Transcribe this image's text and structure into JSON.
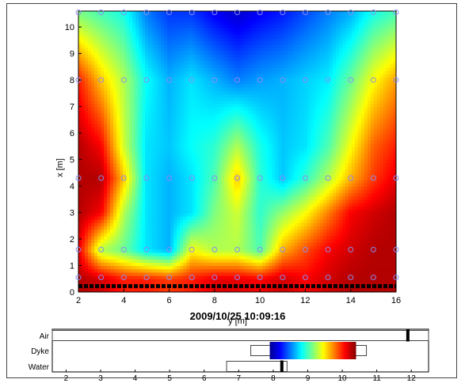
{
  "chart_data": [
    {
      "type": "heatmap",
      "title": "",
      "xlabel": "y [m]",
      "ylabel": "x [m]",
      "xlim": [
        2,
        16
      ],
      "ylim": [
        0,
        10.6
      ],
      "x_ticks": [
        "2",
        "4",
        "6",
        "8",
        "10",
        "12",
        "14",
        "16"
      ],
      "y_ticks": [
        "0",
        "1",
        "2",
        "3",
        "4",
        "5",
        "6",
        "7",
        "8",
        "9",
        "10"
      ],
      "colormap": "jet",
      "sensor_rows_x": [
        0.55,
        1.6,
        4.3,
        8.0,
        10.55
      ],
      "sensor_cols_y": [
        2,
        3,
        4,
        5,
        6,
        7,
        8,
        9,
        10,
        11,
        12,
        13,
        14,
        15,
        16
      ],
      "field_samples": {
        "y": [
          2,
          3,
          4,
          5,
          6,
          7,
          8,
          9,
          10,
          11,
          12,
          13,
          14,
          15,
          16
        ],
        "x": [
          0.5,
          1.6,
          3.0,
          4.3,
          5.5,
          8.0,
          10.5
        ],
        "values": [
          [
            0.95,
            0.92,
            0.85,
            0.85,
            0.82,
            0.85,
            0.9,
            0.9,
            0.88,
            0.92,
            0.88,
            0.92,
            0.95,
            0.95,
            0.95
          ],
          [
            0.9,
            0.55,
            0.48,
            0.35,
            0.3,
            0.62,
            0.55,
            0.55,
            0.45,
            0.7,
            0.8,
            0.88,
            0.92,
            0.95,
            0.95
          ],
          [
            0.95,
            0.88,
            0.55,
            0.35,
            0.3,
            0.35,
            0.5,
            0.58,
            0.42,
            0.52,
            0.62,
            0.75,
            0.88,
            0.92,
            0.95
          ],
          [
            0.95,
            0.95,
            0.68,
            0.35,
            0.3,
            0.35,
            0.45,
            0.68,
            0.42,
            0.32,
            0.42,
            0.55,
            0.7,
            0.82,
            0.9
          ],
          [
            0.95,
            0.88,
            0.58,
            0.35,
            0.32,
            0.38,
            0.42,
            0.55,
            0.4,
            0.32,
            0.35,
            0.45,
            0.62,
            0.78,
            0.85
          ],
          [
            0.85,
            0.68,
            0.55,
            0.38,
            0.3,
            0.35,
            0.3,
            0.25,
            0.28,
            0.3,
            0.33,
            0.36,
            0.48,
            0.62,
            0.72
          ],
          [
            0.5,
            0.45,
            0.4,
            0.25,
            0.18,
            0.18,
            0.12,
            0.08,
            0.12,
            0.15,
            0.2,
            0.25,
            0.3,
            0.4,
            0.45
          ]
        ]
      }
    },
    {
      "type": "bar",
      "title": "2009/10/25 10:09:16",
      "xlim": [
        1.6,
        12.5
      ],
      "x_ticks": [
        "2",
        "3",
        "4",
        "5",
        "6",
        "7",
        "8",
        "9",
        "10",
        "11",
        "12"
      ],
      "categories": [
        "Air",
        "Dyke",
        "Water"
      ],
      "bars": [
        {
          "name": "Air",
          "start": 1.6,
          "end": 12.5,
          "marker": 11.9
        },
        {
          "name": "Dyke",
          "start": 7.35,
          "end": 10.7,
          "colorbar_start": 7.9,
          "colorbar_end": 10.4
        },
        {
          "name": "Water",
          "start": 6.65,
          "end": 8.4,
          "marker": 8.25
        }
      ]
    }
  ]
}
